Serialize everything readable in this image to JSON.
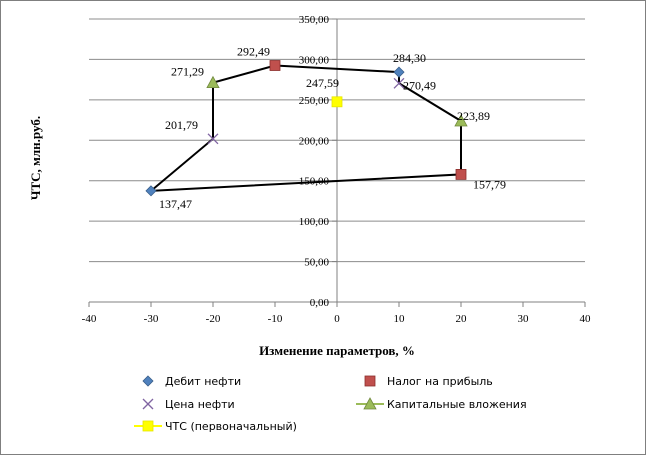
{
  "chart_data": {
    "type": "scatter",
    "xlabel": "Изменение параметров, %",
    "ylabel": "ЧТС, млн.руб.",
    "xlim": [
      -40,
      40
    ],
    "ylim": [
      0,
      350
    ],
    "x_ticks": [
      "-40",
      "-30",
      "-20",
      "-10",
      "0",
      "10",
      "20",
      "30",
      "40"
    ],
    "y_ticks": [
      "0,00",
      "50,00",
      "100,00",
      "150,00",
      "200,00",
      "250,00",
      "300,00",
      "350,00"
    ],
    "grid": "horizontal",
    "legend_position": "bottom",
    "series": [
      {
        "name": "Дебит нефти",
        "marker": "diamond",
        "color": "#4f81bd",
        "points": [
          {
            "x": -30,
            "y": 137.47,
            "label": "137,47"
          },
          {
            "x": 10,
            "y": 284.3,
            "label": "284,30"
          }
        ]
      },
      {
        "name": "Налог на прибыль",
        "marker": "square",
        "color": "#c0504d",
        "points": [
          {
            "x": -10,
            "y": 292.49,
            "label": "292,49"
          },
          {
            "x": 20,
            "y": 157.79,
            "label": "157,79"
          }
        ]
      },
      {
        "name": "Цена нефти",
        "marker": "x",
        "color": "#8064a2",
        "points": [
          {
            "x": -20,
            "y": 201.79,
            "label": "201,79"
          },
          {
            "x": 10,
            "y": 270.49,
            "label": "270,49"
          }
        ]
      },
      {
        "name": "Капитальные вложения",
        "marker": "triangle",
        "color": "#9bbb59",
        "points": [
          {
            "x": -20,
            "y": 271.29,
            "label": "271,29"
          },
          {
            "x": 20,
            "y": 223.89,
            "label": "223,89"
          }
        ]
      },
      {
        "name": "ЧТС (первоначальный)",
        "marker": "square",
        "color": "#ffff00",
        "points": [
          {
            "x": 0,
            "y": 247.59,
            "label": "247,59"
          }
        ]
      }
    ],
    "outline": {
      "color": "#000000",
      "path": [
        {
          "x": -30,
          "y": 137.47
        },
        {
          "x": -20,
          "y": 201.79
        },
        {
          "x": -20,
          "y": 271.29
        },
        {
          "x": -10,
          "y": 292.49
        },
        {
          "x": 10,
          "y": 284.3
        },
        {
          "x": 10,
          "y": 270.49
        },
        {
          "x": 20,
          "y": 223.89
        },
        {
          "x": 20,
          "y": 157.79
        },
        {
          "x": -30,
          "y": 137.47
        }
      ]
    }
  }
}
